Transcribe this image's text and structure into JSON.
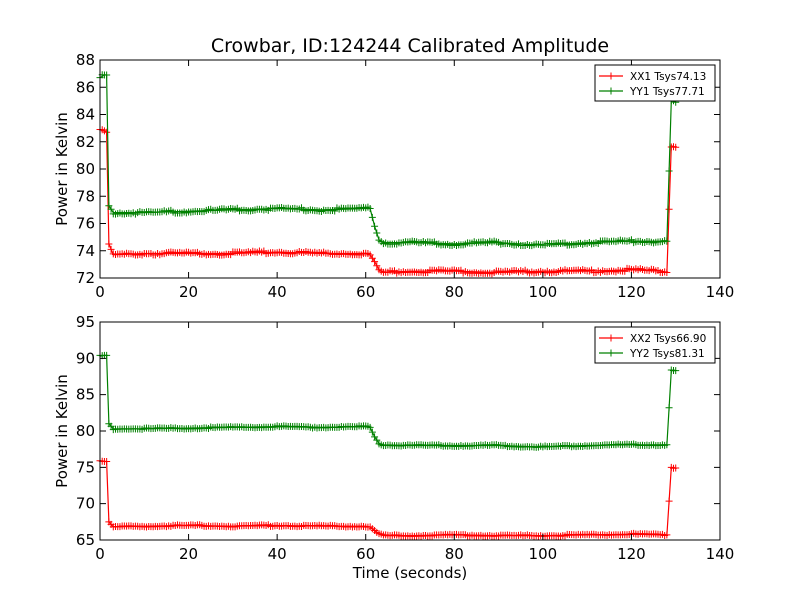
{
  "figure": {
    "title": "Crowbar, ID:124244 Calibrated Amplitude"
  },
  "chart_data": [
    {
      "type": "line",
      "title": "Crowbar, ID:124244 Calibrated Amplitude",
      "xlabel": "",
      "ylabel": "Power in Kelvin",
      "xlim": [
        0,
        140
      ],
      "ylim": [
        72,
        88
      ],
      "xticks": [
        0,
        20,
        40,
        60,
        80,
        100,
        120,
        140
      ],
      "yticks": [
        72,
        74,
        76,
        78,
        80,
        82,
        84,
        86,
        88
      ],
      "grid": false,
      "legend": "top-right",
      "series": [
        {
          "name": "XX1 Tsys74.13",
          "color": "#ff0000",
          "marker": "+",
          "x": [
            0,
            1,
            1.5,
            2,
            3,
            10,
            20,
            30,
            40,
            50,
            60,
            61,
            62,
            63,
            64,
            70,
            80,
            90,
            100,
            110,
            120,
            127,
            128,
            129,
            130
          ],
          "y": [
            82.9,
            82.8,
            82.7,
            74.5,
            73.7,
            73.8,
            73.8,
            73.8,
            73.9,
            73.8,
            73.8,
            73.7,
            73.2,
            72.6,
            72.4,
            72.5,
            72.5,
            72.4,
            72.5,
            72.5,
            72.6,
            72.5,
            72.4,
            81.7,
            81.6
          ]
        },
        {
          "name": "YY1 Tsys77.71",
          "color": "#008000",
          "marker": "+",
          "x": [
            0,
            1,
            1.5,
            2,
            3,
            10,
            20,
            30,
            40,
            50,
            60,
            61,
            62,
            63,
            64,
            70,
            80,
            90,
            100,
            110,
            120,
            127,
            128,
            129,
            130
          ],
          "y": [
            86.7,
            86.9,
            86.9,
            77.3,
            76.8,
            76.8,
            76.9,
            77.0,
            77.1,
            77.0,
            77.1,
            77.1,
            75.8,
            74.8,
            74.6,
            74.6,
            74.5,
            74.6,
            74.4,
            74.6,
            74.7,
            74.7,
            74.7,
            85.0,
            84.9
          ]
        }
      ]
    },
    {
      "type": "line",
      "title": "",
      "xlabel": "Time (seconds)",
      "ylabel": "Power in Kelvin",
      "xlim": [
        0,
        140
      ],
      "ylim": [
        65,
        95
      ],
      "xticks": [
        0,
        20,
        40,
        60,
        80,
        100,
        120,
        140
      ],
      "yticks": [
        65,
        70,
        75,
        80,
        85,
        90,
        95
      ],
      "grid": false,
      "legend": "top-right",
      "series": [
        {
          "name": "XX2 Tsys66.90",
          "color": "#ff0000",
          "marker": "+",
          "x": [
            0,
            1,
            1.5,
            2,
            3,
            10,
            20,
            30,
            40,
            50,
            60,
            61,
            62,
            63,
            64,
            70,
            80,
            90,
            100,
            110,
            120,
            127,
            128,
            129,
            130
          ],
          "y": [
            75.9,
            75.8,
            75.8,
            67.5,
            66.8,
            66.9,
            67.0,
            66.9,
            67.0,
            66.9,
            66.9,
            66.8,
            66.3,
            65.8,
            65.6,
            65.6,
            65.7,
            65.6,
            65.6,
            65.7,
            65.8,
            65.7,
            65.7,
            75.0,
            74.9
          ]
        },
        {
          "name": "YY2 Tsys81.31",
          "color": "#008000",
          "marker": "+",
          "x": [
            0,
            1,
            1.5,
            2,
            3,
            10,
            20,
            30,
            40,
            50,
            60,
            61,
            62,
            63,
            64,
            70,
            80,
            90,
            100,
            110,
            120,
            127,
            128,
            129,
            130
          ],
          "y": [
            90.3,
            90.4,
            90.4,
            81.0,
            80.3,
            80.3,
            80.4,
            80.5,
            80.6,
            80.5,
            80.6,
            80.5,
            79.2,
            78.3,
            78.1,
            78.0,
            78.0,
            78.0,
            77.8,
            78.0,
            78.1,
            78.1,
            78.1,
            88.3,
            88.3
          ]
        }
      ]
    }
  ]
}
